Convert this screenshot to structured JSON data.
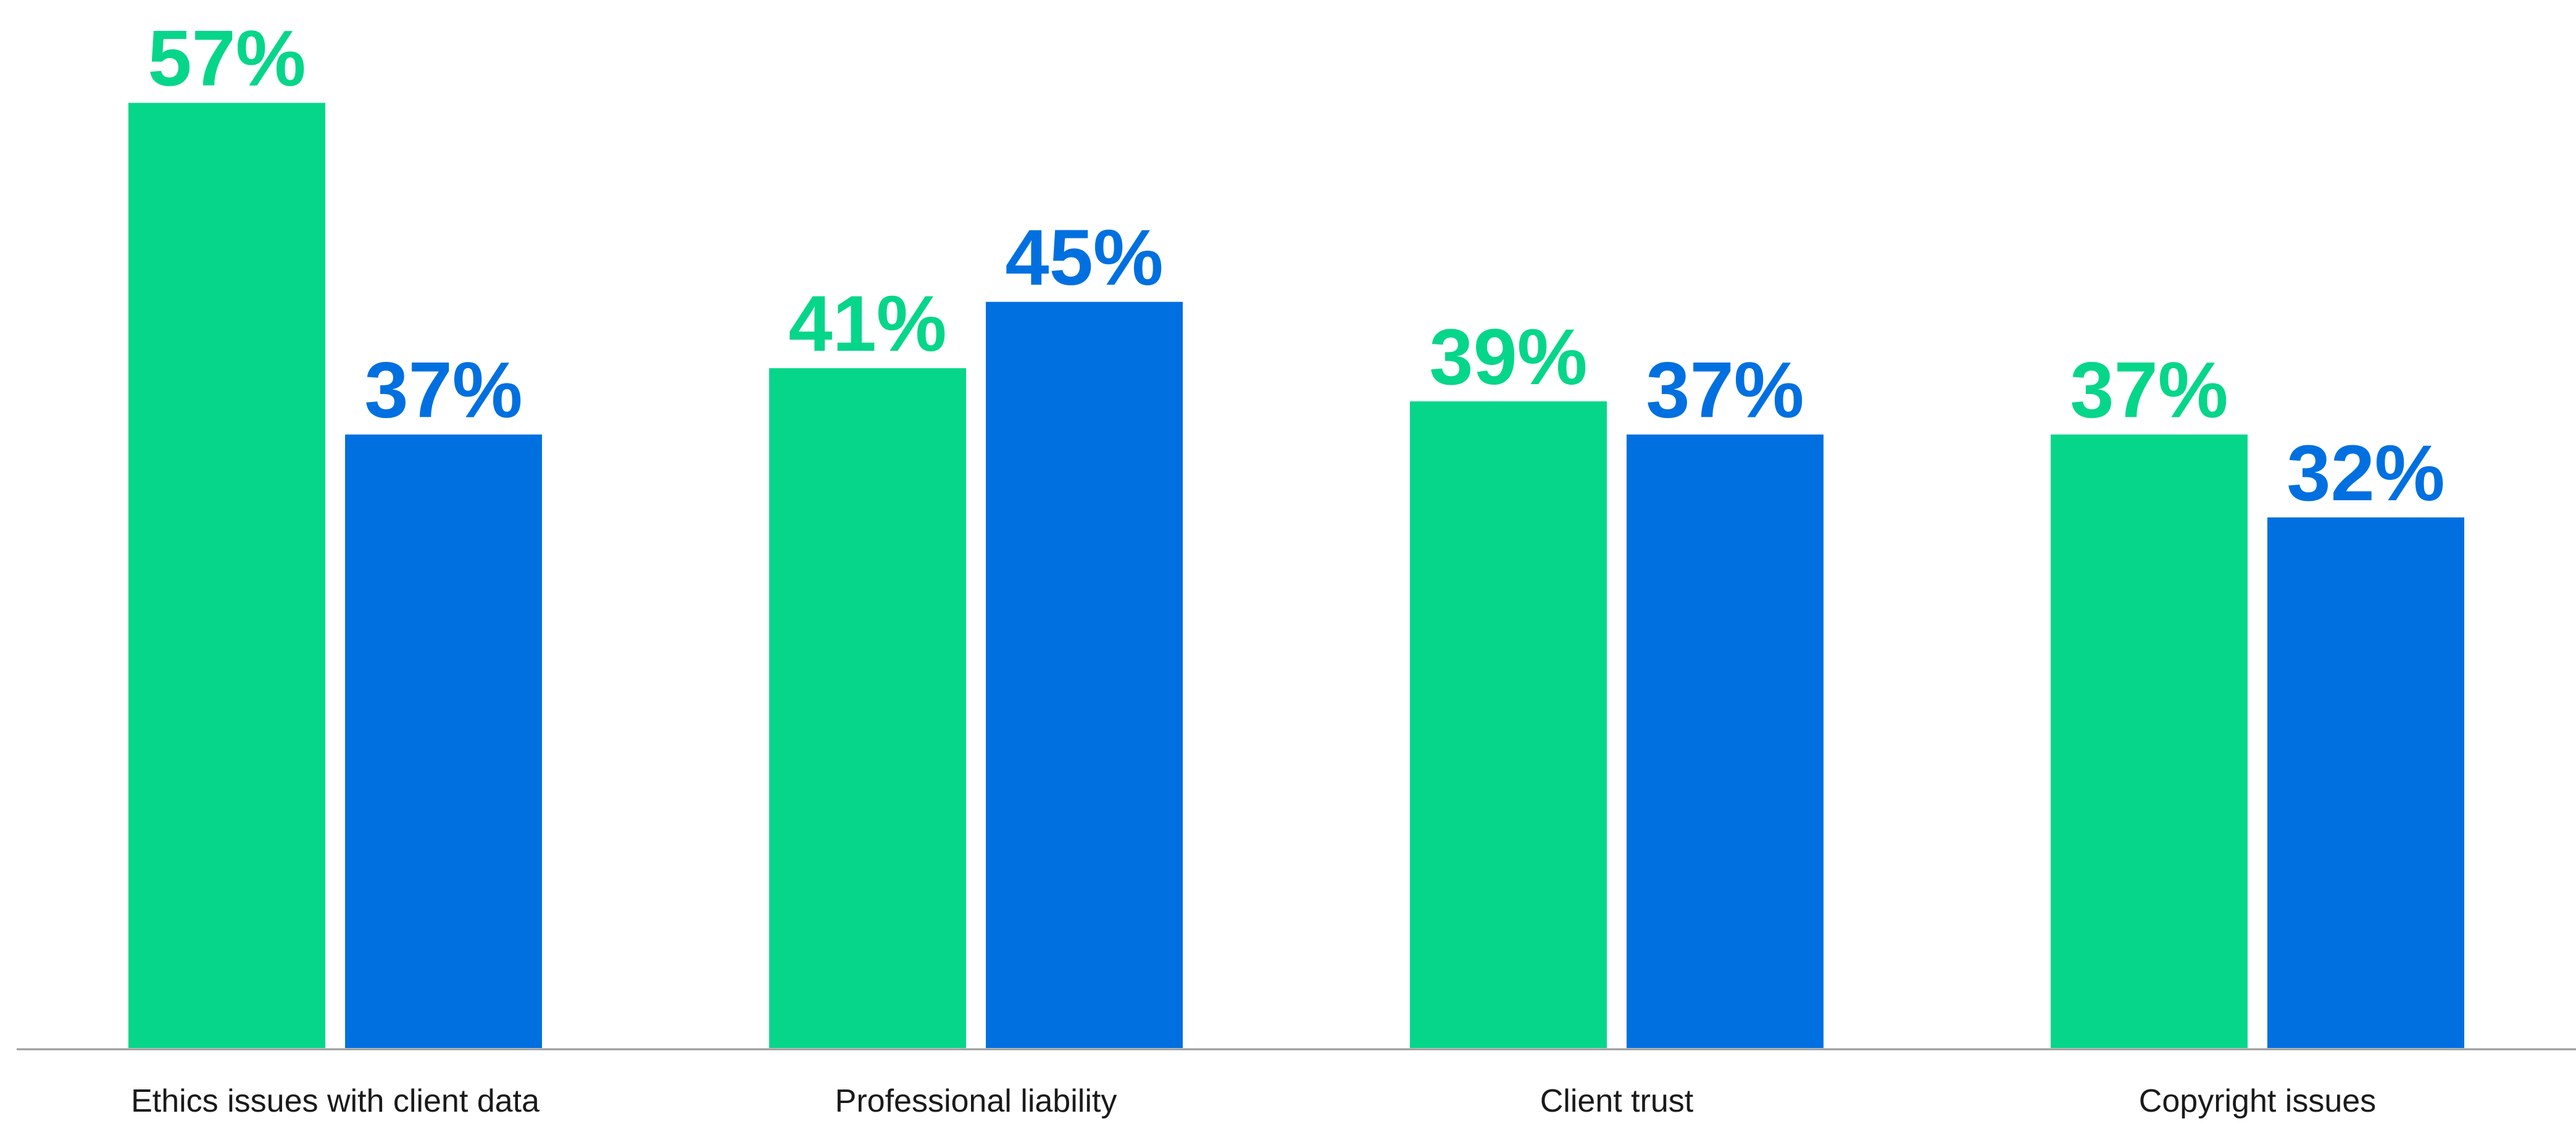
{
  "chart_data": {
    "type": "bar",
    "categories": [
      "Ethics issues with client data",
      "Professional liability",
      "Client trust",
      "Copyright issues"
    ],
    "series": [
      {
        "color": "#06d68a",
        "values": [
          57,
          41,
          39,
          37
        ],
        "value_labels": [
          "57%",
          "41%",
          "39%",
          "37%"
        ]
      },
      {
        "color": "#0070e0",
        "values": [
          37,
          45,
          37,
          32
        ],
        "value_labels": [
          "37%",
          "45%",
          "37%",
          "32%"
        ]
      }
    ]
  }
}
